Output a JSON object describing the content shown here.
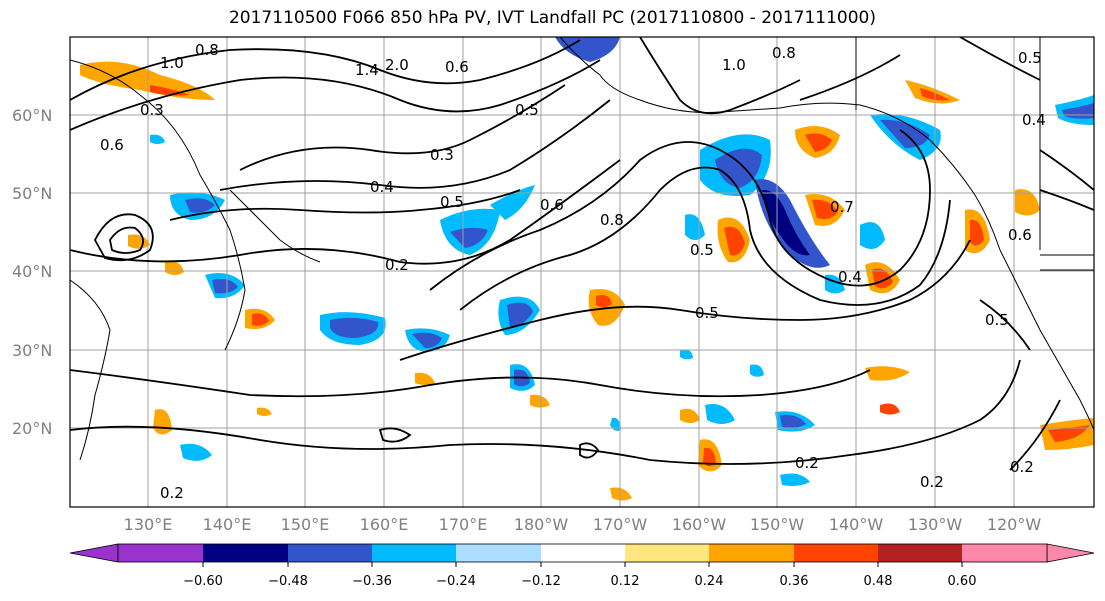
{
  "title": "2017110500 F066 850 hPa PV, IVT Landfall PC (2017110800 - 2017111000)",
  "lat_labels": [
    "60°N",
    "50°N",
    "40°N",
    "30°N",
    "20°N"
  ],
  "lon_labels": [
    "130°E",
    "140°E",
    "150°E",
    "160°E",
    "170°E",
    "180°W",
    "170°W",
    "160°W",
    "150°W",
    "140°W",
    "130°W",
    "120°W"
  ],
  "colorbar": {
    "ticks": [
      "−0.60",
      "−0.48",
      "−0.36",
      "−0.24",
      "−0.12",
      "0.12",
      "0.24",
      "0.36",
      "0.48",
      "0.60"
    ],
    "colors": [
      "#9933cc",
      "#000080",
      "#3355cc",
      "#00bbff",
      "#aaddff",
      "#ffffff",
      "#ffe680",
      "#ffa500",
      "#ff4400",
      "#b22222",
      "#ff88aa"
    ]
  },
  "contour_labels": [
    "1.0",
    "0.8",
    "1.4",
    "2.0",
    "0.6",
    "1.0",
    "0.8",
    "0.5",
    "0.6",
    "0.3",
    "0.5",
    "0.4",
    "0.3",
    "0.4",
    "0.5",
    "0.2",
    "0.6",
    "0.8",
    "0.5",
    "0.7",
    "0.4",
    "0.5",
    "0.6",
    "0.5",
    "0.2",
    "0.2",
    "0.2",
    "0.2"
  ]
}
